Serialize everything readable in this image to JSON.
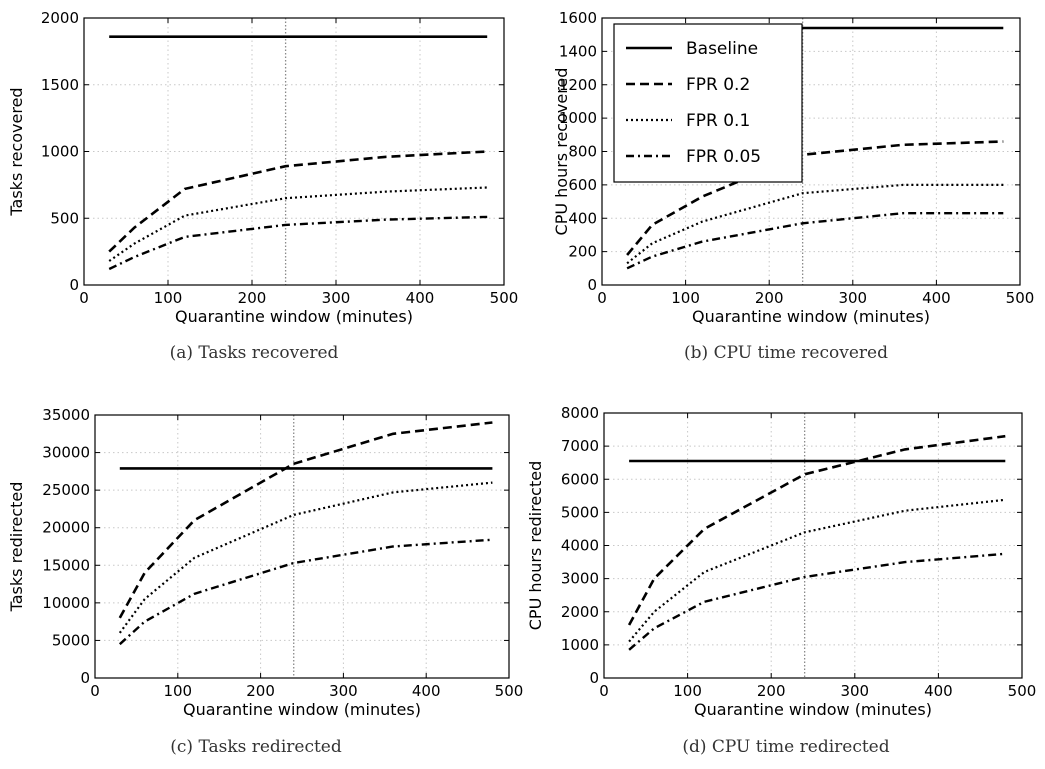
{
  "chart_data": [
    {
      "type": "line",
      "caption": "(a) Tasks recovered",
      "xlabel": "Quarantine window (minutes)",
      "ylabel": "Tasks recovered",
      "xlim": [
        0,
        500
      ],
      "ylim": [
        0,
        2000
      ],
      "xticks": [
        "0",
        "100",
        "200",
        "300",
        "400",
        "500"
      ],
      "yticks": [
        "0",
        "500",
        "1000",
        "1500",
        "2000"
      ],
      "grid": true,
      "vertical_marker_x": 240,
      "x": [
        30,
        60,
        120,
        240,
        360,
        480
      ],
      "series": [
        {
          "name": "Baseline",
          "style": "solid",
          "values": [
            1860,
            1860,
            1860,
            1860,
            1860,
            1860
          ]
        },
        {
          "name": "FPR 0.2",
          "style": "dashed",
          "values": [
            250,
            430,
            720,
            890,
            960,
            1000
          ]
        },
        {
          "name": "FPR 0.1",
          "style": "dotted",
          "values": [
            180,
            310,
            520,
            650,
            700,
            730
          ]
        },
        {
          "name": "FPR 0.05",
          "style": "dashdot",
          "values": [
            120,
            210,
            360,
            450,
            490,
            510
          ]
        }
      ]
    },
    {
      "type": "line",
      "caption": "(b) CPU time recovered",
      "xlabel": "Quarantine window (minutes)",
      "ylabel": "CPU hours recovered",
      "xlim": [
        0,
        500
      ],
      "ylim": [
        0,
        1600
      ],
      "xticks": [
        "0",
        "100",
        "200",
        "300",
        "400",
        "500"
      ],
      "yticks": [
        "0",
        "200",
        "400",
        "600",
        "800",
        "1000",
        "1200",
        "1400",
        "1600"
      ],
      "grid": true,
      "legend": "top-left",
      "vertical_marker_x": 240,
      "x": [
        30,
        60,
        120,
        240,
        360,
        480
      ],
      "series": [
        {
          "name": "Baseline",
          "style": "solid",
          "values": [
            1540,
            1540,
            1540,
            1540,
            1540,
            1540
          ]
        },
        {
          "name": "FPR 0.2",
          "style": "dashed",
          "values": [
            180,
            360,
            530,
            780,
            840,
            860
          ]
        },
        {
          "name": "FPR 0.1",
          "style": "dotted",
          "values": [
            130,
            250,
            380,
            550,
            600,
            600
          ]
        },
        {
          "name": "FPR 0.05",
          "style": "dashdot",
          "values": [
            100,
            170,
            260,
            370,
            430,
            430
          ]
        }
      ]
    },
    {
      "type": "line",
      "caption": "(c) Tasks redirected",
      "xlabel": "Quarantine window (minutes)",
      "ylabel": "Tasks redirected",
      "xlim": [
        0,
        500
      ],
      "ylim": [
        0,
        35000
      ],
      "xticks": [
        "0",
        "100",
        "200",
        "300",
        "400",
        "500"
      ],
      "yticks": [
        "0",
        "5000",
        "10000",
        "15000",
        "20000",
        "25000",
        "30000",
        "35000"
      ],
      "grid": true,
      "vertical_marker_x": 240,
      "x": [
        30,
        60,
        120,
        240,
        360,
        480
      ],
      "series": [
        {
          "name": "Baseline",
          "style": "solid",
          "values": [
            27900,
            27900,
            27900,
            27900,
            27900,
            27900
          ]
        },
        {
          "name": "FPR 0.2",
          "style": "dashed",
          "values": [
            8000,
            14000,
            21000,
            28500,
            32500,
            34000
          ]
        },
        {
          "name": "FPR 0.1",
          "style": "dotted",
          "values": [
            6000,
            10500,
            16000,
            21700,
            24700,
            26000
          ]
        },
        {
          "name": "FPR 0.05",
          "style": "dashdot",
          "values": [
            4500,
            7500,
            11200,
            15300,
            17500,
            18400
          ]
        }
      ]
    },
    {
      "type": "line",
      "caption": "(d) CPU time redirected",
      "xlabel": "Quarantine window (minutes)",
      "ylabel": "CPU hours redirected",
      "xlim": [
        0,
        500
      ],
      "ylim": [
        0,
        8000
      ],
      "xticks": [
        "0",
        "100",
        "200",
        "300",
        "400",
        "500"
      ],
      "yticks": [
        "0",
        "1000",
        "2000",
        "3000",
        "4000",
        "5000",
        "6000",
        "7000",
        "8000"
      ],
      "grid": true,
      "vertical_marker_x": 240,
      "x": [
        30,
        60,
        120,
        240,
        360,
        480
      ],
      "series": [
        {
          "name": "Baseline",
          "style": "solid",
          "values": [
            6550,
            6550,
            6550,
            6550,
            6550,
            6550
          ]
        },
        {
          "name": "FPR 0.2",
          "style": "dashed",
          "values": [
            1600,
            3000,
            4500,
            6150,
            6900,
            7300
          ]
        },
        {
          "name": "FPR 0.1",
          "style": "dotted",
          "values": [
            1100,
            2000,
            3200,
            4400,
            5050,
            5380
          ]
        },
        {
          "name": "FPR 0.05",
          "style": "dashdot",
          "values": [
            850,
            1500,
            2300,
            3050,
            3500,
            3750
          ]
        }
      ]
    }
  ]
}
